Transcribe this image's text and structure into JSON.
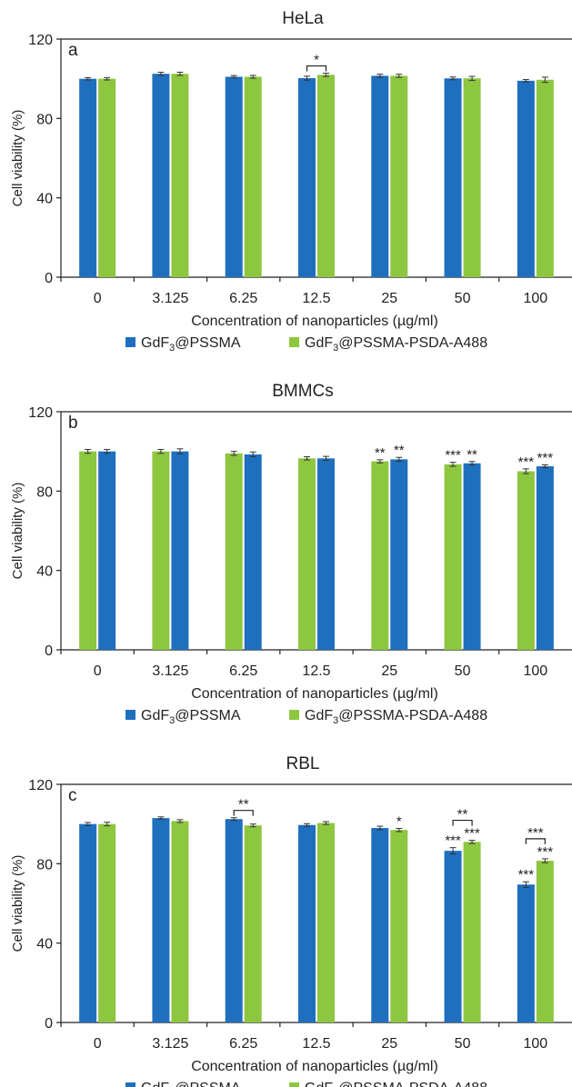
{
  "figure": {
    "x_label": "Concentration of nanoparticles (µg/ml)",
    "y_label": "Cell viability (%)"
  },
  "legend": {
    "pssma": {
      "label_pre": "GdF",
      "label_sub": "3",
      "label_post": "@PSSMA",
      "color": "#1f6fbf"
    },
    "psda": {
      "label_pre": "GdF",
      "label_sub": "3",
      "label_post": "@PSSMA-PSDA-A488",
      "color": "#8dc63f"
    }
  },
  "chart_data": [
    {
      "type": "bar",
      "panel": "a",
      "title": "HeLa",
      "categories": [
        "0",
        "3.125",
        "6.25",
        "12.5",
        "25",
        "50",
        "100"
      ],
      "series_order": [
        "GdF3@PSSMA",
        "GdF3@PSSMA-PSDA-A488"
      ],
      "series": [
        {
          "name": "GdF3@PSSMA",
          "color": "#1f6fbf",
          "values": [
            100,
            102.5,
            101,
            100.3,
            101.5,
            100.2,
            99
          ],
          "errors": [
            0.6,
            0.8,
            0.6,
            1.0,
            0.8,
            0.7,
            0.6
          ]
        },
        {
          "name": "GdF3@PSSMA-PSDA-A488",
          "color": "#8dc63f",
          "values": [
            100,
            102.5,
            101,
            102,
            101.5,
            100.2,
            99.5
          ],
          "errors": [
            0.6,
            0.8,
            0.7,
            0.8,
            0.8,
            1.0,
            1.3
          ]
        }
      ],
      "annotations": [
        {
          "category_index": 3,
          "type": "bracket",
          "text": "*"
        }
      ],
      "ylim": [
        0,
        120
      ],
      "yticks": [
        0,
        40,
        80,
        120
      ],
      "grid": false,
      "legend_position": "bottom"
    },
    {
      "type": "bar",
      "panel": "b",
      "title": "BMMCs",
      "categories": [
        "0",
        "3.125",
        "6.25",
        "12.5",
        "25",
        "50",
        "100"
      ],
      "series_order": [
        "GdF3@PSSMA-PSDA-A488",
        "GdF3@PSSMA"
      ],
      "series": [
        {
          "name": "GdF3@PSSMA",
          "color": "#1f6fbf",
          "values": [
            100,
            100,
            98.5,
            96.5,
            96,
            94,
            92.5
          ],
          "errors": [
            1.0,
            1.3,
            1.2,
            1.0,
            1.0,
            0.9,
            0.7
          ]
        },
        {
          "name": "GdF3@PSSMA-PSDA-A488",
          "color": "#8dc63f",
          "values": [
            100,
            100,
            99,
            96.5,
            95,
            93.5,
            90
          ],
          "errors": [
            1.0,
            1.0,
            1.0,
            0.8,
            0.8,
            1.0,
            1.2
          ]
        }
      ],
      "annotations": [
        {
          "category_index": 4,
          "series": 0,
          "text": "**"
        },
        {
          "category_index": 4,
          "series": 1,
          "text": "**"
        },
        {
          "category_index": 5,
          "series": 0,
          "text": "***"
        },
        {
          "category_index": 5,
          "series": 1,
          "text": "**"
        },
        {
          "category_index": 6,
          "series": 0,
          "text": "***"
        },
        {
          "category_index": 6,
          "series": 1,
          "text": "***"
        }
      ],
      "ylim": [
        0,
        120
      ],
      "yticks": [
        0,
        40,
        80,
        120
      ],
      "grid": false,
      "legend_position": "bottom"
    },
    {
      "type": "bar",
      "panel": "c",
      "title": "RBL",
      "categories": [
        "0",
        "3.125",
        "6.25",
        "12.5",
        "25",
        "50",
        "100"
      ],
      "series_order": [
        "GdF3@PSSMA",
        "GdF3@PSSMA-PSDA-A488"
      ],
      "series": [
        {
          "name": "GdF3@PSSMA",
          "color": "#1f6fbf",
          "values": [
            100,
            103,
            102.5,
            99.5,
            98,
            86.5,
            69.5
          ],
          "errors": [
            0.8,
            0.6,
            0.7,
            0.7,
            0.9,
            1.6,
            1.4
          ]
        },
        {
          "name": "GdF3@PSSMA-PSDA-A488",
          "color": "#8dc63f",
          "values": [
            100,
            101.5,
            99.3,
            100.5,
            97,
            91,
            81.5
          ],
          "errors": [
            0.9,
            0.7,
            0.7,
            0.7,
            0.8,
            0.8,
            1.0
          ]
        }
      ],
      "annotations": [
        {
          "category_index": 2,
          "type": "bracket",
          "text": "**"
        },
        {
          "category_index": 4,
          "series": 1,
          "text": "*"
        },
        {
          "category_index": 5,
          "type": "bracket",
          "text": "**"
        },
        {
          "category_index": 5,
          "series": 0,
          "text": "***"
        },
        {
          "category_index": 5,
          "series": 1,
          "text": "***"
        },
        {
          "category_index": 6,
          "type": "bracket",
          "text": "***"
        },
        {
          "category_index": 6,
          "series": 0,
          "text": "***"
        },
        {
          "category_index": 6,
          "series": 1,
          "text": "***"
        }
      ],
      "ylim": [
        0,
        120
      ],
      "yticks": [
        0,
        40,
        80,
        120
      ],
      "grid": false,
      "legend_position": "bottom"
    }
  ]
}
